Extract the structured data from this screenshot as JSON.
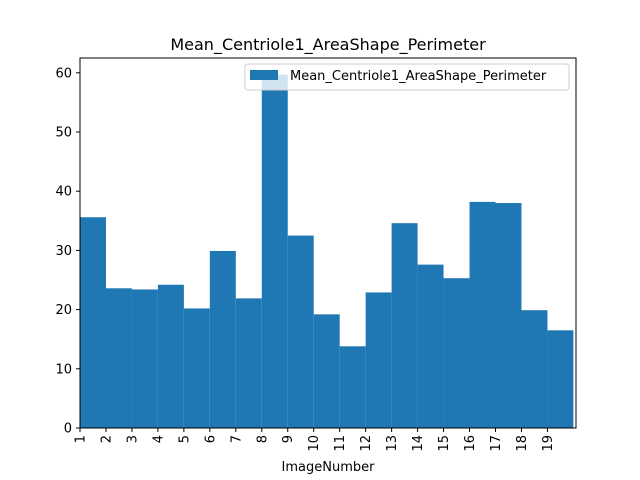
{
  "chart_data": {
    "type": "bar",
    "title": "Mean_Centriole1_AreaShape_Perimeter",
    "xlabel": "ImageNumber",
    "ylabel": "",
    "legend": {
      "entries": [
        "Mean_Centriole1_AreaShape_Perimeter"
      ],
      "placement": "top-right"
    },
    "grid": false,
    "x_tick_labels": [
      "1",
      "2",
      "3",
      "4",
      "5",
      "6",
      "7",
      "8",
      "9",
      "10",
      "11",
      "12",
      "13",
      "14",
      "15",
      "16",
      "17",
      "18",
      "19"
    ],
    "y_tick_labels": [
      "0",
      "10",
      "20",
      "30",
      "40",
      "50",
      "60"
    ],
    "xlim": [
      1,
      20.1
    ],
    "ylim": [
      0,
      62.5
    ],
    "x_ticks": [
      1,
      2,
      3,
      4,
      5,
      6,
      7,
      8,
      9,
      10,
      11,
      12,
      13,
      14,
      15,
      16,
      17,
      18,
      19
    ],
    "y_ticks": [
      0,
      10,
      20,
      30,
      40,
      50,
      60
    ],
    "bar_edges": [
      1,
      2,
      3,
      4,
      5,
      6,
      7,
      8,
      9,
      10,
      11,
      12,
      13,
      14,
      15,
      16,
      17,
      18,
      19,
      20
    ],
    "series": [
      {
        "name": "Mean_Centriole1_AreaShape_Perimeter",
        "color": "#1f77b4",
        "values": [
          35.6,
          23.6,
          23.4,
          24.2,
          20.2,
          29.9,
          21.9,
          59.7,
          32.5,
          19.2,
          13.8,
          22.9,
          34.6,
          27.6,
          25.3,
          38.2,
          38.0,
          19.9,
          16.5
        ]
      }
    ]
  }
}
